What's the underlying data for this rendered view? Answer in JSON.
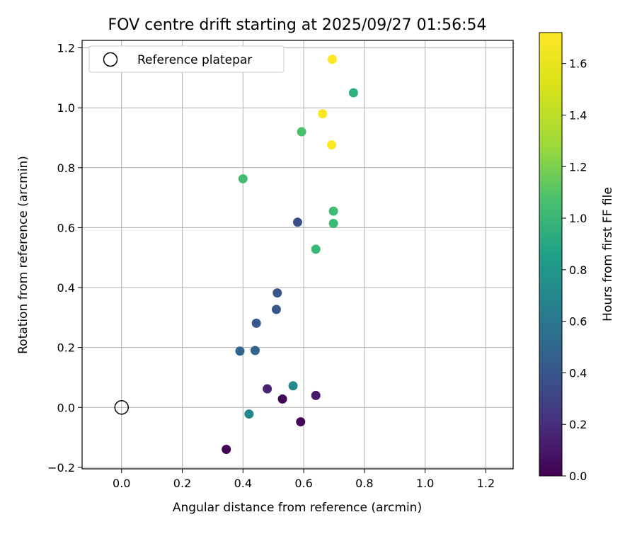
{
  "chart_data": {
    "type": "scatter",
    "title": "FOV centre drift starting at 2025/09/27 01:56:54",
    "xlabel": "Angular distance from reference (arcmin)",
    "ylabel": "Rotation from reference (arcmin)",
    "xlim": [
      -0.13,
      1.29
    ],
    "ylim": [
      -0.205,
      1.225
    ],
    "xticks": [
      0.0,
      0.2,
      0.4,
      0.6,
      0.8,
      1.0,
      1.2
    ],
    "xtick_labels": [
      "0.0",
      "0.2",
      "0.4",
      "0.6",
      "0.8",
      "1.0",
      "1.2"
    ],
    "yticks": [
      -0.2,
      0.0,
      0.2,
      0.4,
      0.6,
      0.8,
      1.0,
      1.2
    ],
    "ytick_labels": [
      "−0.2",
      "0.0",
      "0.2",
      "0.4",
      "0.6",
      "0.8",
      "1.0",
      "1.2"
    ],
    "grid": true,
    "legend": {
      "position": "top-left",
      "label": "Reference platepar"
    },
    "reference_point": {
      "x": 0.0,
      "y": 0.0
    },
    "colorbar": {
      "label": "Hours from first FF file",
      "colormap": "viridis",
      "range": [
        0.0,
        1.72
      ],
      "ticks": [
        0.0,
        0.2,
        0.4,
        0.6,
        0.8,
        1.0,
        1.2,
        1.4,
        1.6
      ],
      "tick_labels": [
        "0.0",
        "0.2",
        "0.4",
        "0.6",
        "0.8",
        "1.0",
        "1.2",
        "1.4",
        "1.6"
      ]
    },
    "points": [
      {
        "x": 0.345,
        "y": -0.14,
        "hours": 0.0
      },
      {
        "x": 0.53,
        "y": 0.028,
        "hours": 0.02
      },
      {
        "x": 0.59,
        "y": -0.048,
        "hours": 0.03
      },
      {
        "x": 0.64,
        "y": 0.04,
        "hours": 0.12
      },
      {
        "x": 0.48,
        "y": 0.062,
        "hours": 0.16
      },
      {
        "x": 0.58,
        "y": 0.618,
        "hours": 0.42
      },
      {
        "x": 0.513,
        "y": 0.382,
        "hours": 0.45
      },
      {
        "x": 0.51,
        "y": 0.327,
        "hours": 0.47
      },
      {
        "x": 0.444,
        "y": 0.281,
        "hours": 0.47
      },
      {
        "x": 0.44,
        "y": 0.19,
        "hours": 0.55
      },
      {
        "x": 0.39,
        "y": 0.188,
        "hours": 0.57
      },
      {
        "x": 0.565,
        "y": 0.072,
        "hours": 0.82
      },
      {
        "x": 0.42,
        "y": -0.022,
        "hours": 0.8
      },
      {
        "x": 0.764,
        "y": 1.05,
        "hours": 1.1
      },
      {
        "x": 0.64,
        "y": 0.528,
        "hours": 1.16
      },
      {
        "x": 0.698,
        "y": 0.614,
        "hours": 1.17
      },
      {
        "x": 0.698,
        "y": 0.655,
        "hours": 1.18
      },
      {
        "x": 0.4,
        "y": 0.763,
        "hours": 1.2
      },
      {
        "x": 0.593,
        "y": 0.92,
        "hours": 1.22
      },
      {
        "x": 0.662,
        "y": 0.98,
        "hours": 1.72
      },
      {
        "x": 0.692,
        "y": 0.876,
        "hours": 1.72
      },
      {
        "x": 0.694,
        "y": 1.162,
        "hours": 1.72
      }
    ]
  }
}
